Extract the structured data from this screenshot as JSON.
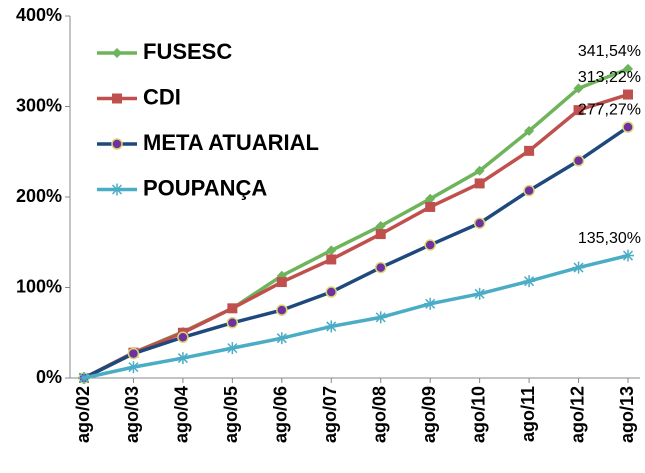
{
  "chart_data": {
    "type": "line",
    "categories": [
      "ago/02",
      "ago/03",
      "ago/04",
      "ago/05",
      "ago/06",
      "ago/07",
      "ago/08",
      "ago/09",
      "ago/10",
      "ago/11",
      "ago/12",
      "ago/13"
    ],
    "series": [
      {
        "name": "FUSESC",
        "color": "#6db45a",
        "marker": "diamond",
        "values": [
          0,
          28,
          51,
          77,
          113,
          141,
          168,
          198,
          229,
          273,
          320,
          341.54
        ],
        "value_labels": [
          null,
          null,
          null,
          null,
          null,
          null,
          null,
          null,
          null,
          null,
          null,
          "341,54%"
        ]
      },
      {
        "name": "CDI",
        "color": "#c0504d",
        "marker": "square",
        "values": [
          0,
          28,
          50,
          77,
          106,
          131,
          159,
          189,
          215,
          251,
          296,
          313.22
        ],
        "value_labels": [
          null,
          null,
          null,
          null,
          null,
          null,
          null,
          null,
          null,
          null,
          null,
          "313,22%"
        ]
      },
      {
        "name": "META ATUARIAL",
        "color": "#1f497d",
        "marker": "circle",
        "values": [
          0,
          27,
          45,
          61,
          75,
          95,
          122,
          147,
          171,
          207,
          240,
          277.27
        ],
        "value_labels": [
          null,
          null,
          null,
          null,
          null,
          null,
          null,
          null,
          null,
          null,
          null,
          "277,27%"
        ]
      },
      {
        "name": "POUPANÇA",
        "color": "#4bacc6",
        "marker": "star",
        "values": [
          0,
          12,
          22,
          33,
          44,
          57,
          67,
          82,
          93,
          107,
          122,
          135.3
        ],
        "value_labels": [
          null,
          null,
          null,
          null,
          null,
          null,
          null,
          null,
          null,
          null,
          null,
          "135,30%"
        ]
      }
    ],
    "ylim": [
      0,
      400
    ],
    "yticks": [
      {
        "value": 0,
        "label": "0%"
      },
      {
        "value": 100,
        "label": "100%"
      },
      {
        "value": 200,
        "label": "200%"
      },
      {
        "value": 300,
        "label": "300%"
      },
      {
        "value": 400,
        "label": "400%"
      }
    ],
    "grid": false,
    "legend": "upper left"
  }
}
